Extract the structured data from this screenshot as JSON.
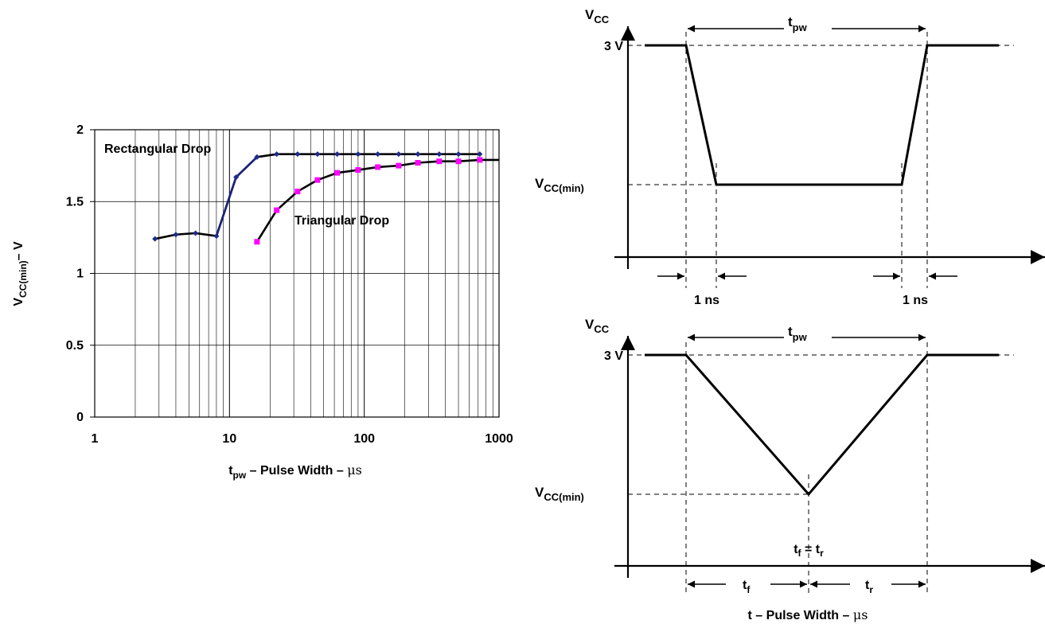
{
  "left_chart": {
    "ylabel_main": "V",
    "ylabel_sub": "CC(min)",
    "ylabel_suffix": "– V",
    "xlabel_main": "t",
    "xlabel_sub": "pw",
    "xlabel_suffix": " – Pulse Width – ",
    "xlabel_unit": "μs",
    "annotation_rect": "Rectangular Drop",
    "annotation_tri": "Triangular Drop"
  },
  "chart_data": {
    "type": "line",
    "x_scale": "log",
    "xlim": [
      1,
      1000
    ],
    "ylim": [
      0,
      2
    ],
    "x_ticks": [
      1,
      10,
      100,
      1000
    ],
    "x_tick_labels": [
      "1",
      "10",
      "100",
      "1000"
    ],
    "y_ticks": [
      0,
      0.5,
      1,
      1.5,
      2
    ],
    "y_tick_labels": [
      "0",
      "0.5",
      "1",
      "1.5",
      "2"
    ],
    "grid": true,
    "series": [
      {
        "name": "Rectangular Drop",
        "line_color": "#000000",
        "line_color_alt": "#1a237e",
        "marker_color": "#1e2a8c",
        "marker": "diamond",
        "x": [
          2.8,
          4,
          5.6,
          8,
          11.2,
          16,
          22.4,
          32,
          45,
          63,
          90,
          126,
          180,
          250,
          360,
          500,
          720
        ],
        "y": [
          1.24,
          1.27,
          1.28,
          1.26,
          1.67,
          1.81,
          1.83,
          1.83,
          1.83,
          1.83,
          1.83,
          1.83,
          1.83,
          1.83,
          1.83,
          1.83,
          1.83
        ]
      },
      {
        "name": "Triangular Drop",
        "line_color": "#000000",
        "marker_color": "#ff00ff",
        "marker": "square",
        "x": [
          16,
          22.4,
          32,
          45,
          63,
          90,
          126,
          180,
          250,
          360,
          500,
          720
        ],
        "y": [
          1.22,
          1.44,
          1.57,
          1.65,
          1.7,
          1.72,
          1.74,
          1.75,
          1.77,
          1.78,
          1.78,
          1.79
        ],
        "line_extends_to": 1000
      }
    ]
  },
  "top_diagram": {
    "vcc_main": "V",
    "vcc_sub": "CC",
    "tpw_main": "t",
    "tpw_sub": "pw",
    "v3": "3 V",
    "vmin_main": "V",
    "vmin_sub": "CC(min)",
    "ns_left": "1 ns",
    "ns_right": "1 ns"
  },
  "bottom_diagram": {
    "vcc_main": "V",
    "vcc_sub": "CC",
    "tpw_main": "t",
    "tpw_sub": "pw",
    "v3": "3 V",
    "vmin_main": "V",
    "vmin_sub": "CC(min)",
    "eq_a": "t",
    "eq_a_sub": "f",
    "eq_mid": " = t",
    "eq_b_sub": "r",
    "tf_main": "t",
    "tf_sub": "f",
    "tr_main": "t",
    "tr_sub": "r",
    "caption_main": "t – Pulse Width – ",
    "caption_unit": "μs"
  }
}
